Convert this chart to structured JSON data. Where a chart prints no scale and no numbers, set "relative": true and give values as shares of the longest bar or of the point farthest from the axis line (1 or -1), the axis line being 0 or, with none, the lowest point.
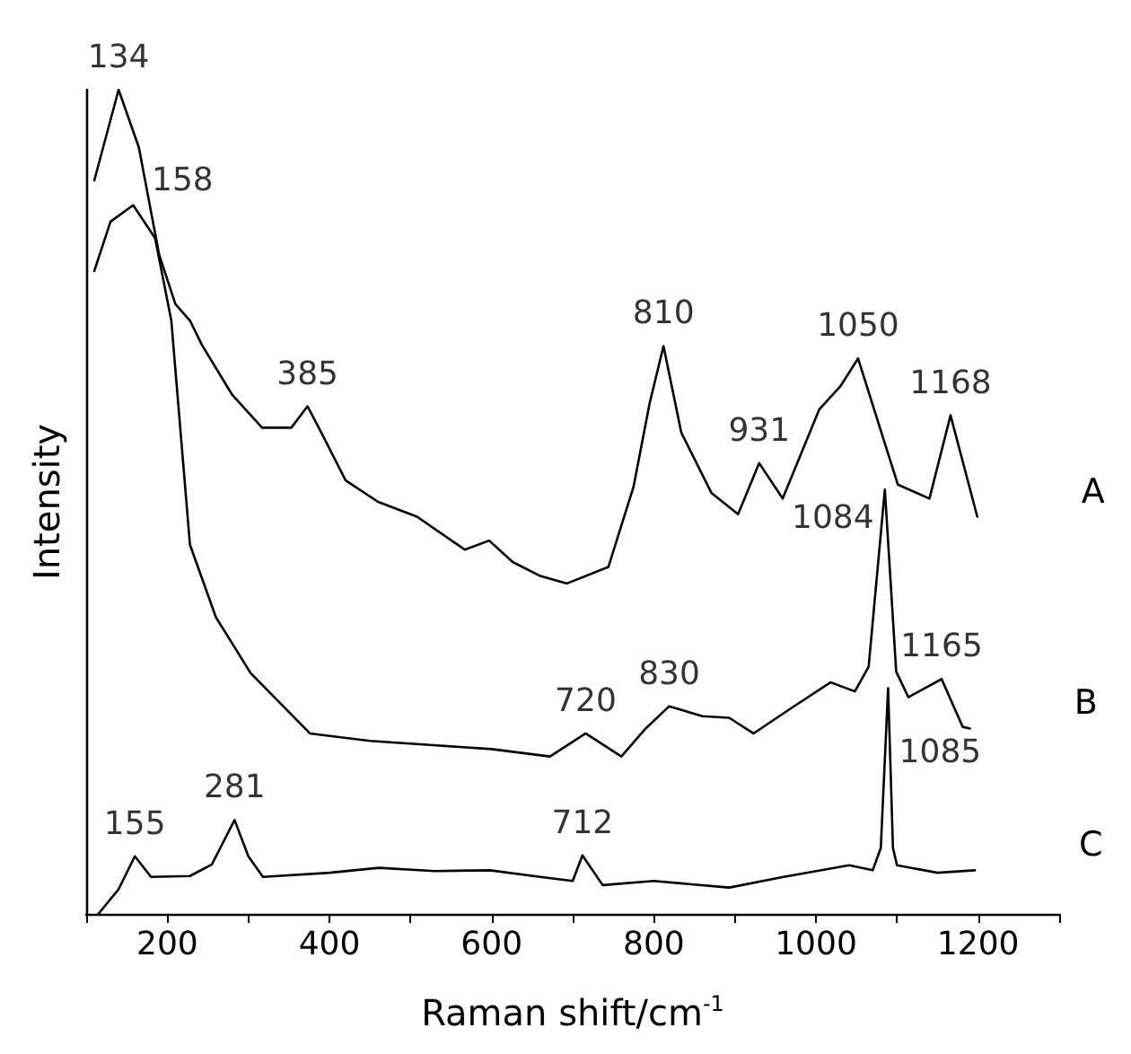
{
  "chart_data": {
    "type": "line",
    "relative": true,
    "xlabel": "Raman shift/cm$^{-1}$",
    "ylabel": "Intensity",
    "xlim": [
      100,
      1300
    ],
    "xticks": [
      {
        "value": 100,
        "label": null
      },
      200,
      {
        "value": 300,
        "label": null
      },
      400,
      {
        "value": 500,
        "label": null
      },
      600,
      {
        "value": 700,
        "label": null
      },
      800,
      {
        "value": 900,
        "label": null
      },
      1000,
      {
        "value": 1100,
        "label": null
      },
      1200,
      {
        "value": 1300,
        "label": null
      }
    ],
    "x": [
      110,
      140,
      165,
      190,
      210,
      228,
      243,
      280,
      317,
      353,
      373,
      390,
      420,
      460,
      508,
      567,
      597,
      626,
      660,
      693,
      744,
      775,
      795,
      812,
      834,
      871,
      904,
      930,
      959,
      1004,
      1030,
      1052,
      1101,
      1140,
      1166,
      1199
    ],
    "series": [
      {
        "name": "A",
        "color": "#000000",
        "values": [
          0.89,
          1.0,
          0.93,
          0.8,
          0.74,
          0.72,
          0.69,
          0.63,
          0.59,
          0.59,
          0.616,
          0.584,
          0.526,
          0.5,
          0.482,
          0.442,
          0.453,
          0.427,
          0.41,
          0.401,
          0.421,
          0.518,
          0.62,
          0.689,
          0.584,
          0.511,
          0.485,
          0.547,
          0.504,
          0.612,
          0.64,
          0.674,
          0.521,
          0.504,
          0.605,
          0.482
        ]
      },
      {
        "name": "B",
        "color": "#000000",
        "x": [
          110,
          130,
          158,
          185,
          205,
          228,
          260,
          303,
          376,
          450,
          524,
          600,
          672,
          716,
          760,
          790,
          819,
          860,
          893,
          923,
          970,
          1018,
          1048,
          1065,
          1085,
          1099,
          1114,
          1155,
          1181,
          1190
        ],
        "values": [
          0.78,
          0.84,
          0.86,
          0.82,
          0.72,
          0.448,
          0.36,
          0.292,
          0.219,
          0.21,
          0.205,
          0.2,
          0.191,
          0.219,
          0.191,
          0.225,
          0.252,
          0.24,
          0.238,
          0.219,
          0.25,
          0.281,
          0.27,
          0.3,
          0.515,
          0.294,
          0.263,
          0.285,
          0.227,
          0.225
        ]
      },
      {
        "name": "C",
        "color": "#000000",
        "x": [
          115,
          140,
          160,
          180,
          228,
          255,
          283,
          300,
          318,
          400,
          461,
          530,
          598,
          660,
          700,
          712,
          737,
          800,
          893,
          960,
          1041,
          1070,
          1080,
          1089,
          1095,
          1100,
          1150,
          1196
        ],
        "values": [
          0.0,
          0.03,
          0.07,
          0.045,
          0.046,
          0.06,
          0.114,
          0.07,
          0.045,
          0.05,
          0.056,
          0.052,
          0.053,
          0.045,
          0.04,
          0.071,
          0.035,
          0.04,
          0.032,
          0.045,
          0.059,
          0.053,
          0.08,
          0.274,
          0.08,
          0.059,
          0.05,
          0.053
        ]
      }
    ],
    "annotations": [
      {
        "text": "134",
        "x": 140,
        "y": 1.0
      },
      {
        "text": "385",
        "x": 373,
        "y": 0.616
      },
      {
        "text": "810",
        "x": 812,
        "y": 0.689
      },
      {
        "text": "931",
        "x": 930,
        "y": 0.547
      },
      {
        "text": "1050",
        "x": 1052,
        "y": 0.674
      },
      {
        "text": "1168",
        "x": 1166,
        "y": 0.605
      },
      {
        "text": "158",
        "x": 158,
        "y": 0.86
      },
      {
        "text": "1084",
        "x": 1085,
        "y": 0.515
      },
      {
        "text": "720",
        "x": 716,
        "y": 0.219
      },
      {
        "text": "830",
        "x": 819,
        "y": 0.252
      },
      {
        "text": "1165",
        "x": 1155,
        "y": 0.285
      },
      {
        "text": "155",
        "x": 160,
        "y": 0.07
      },
      {
        "text": "281",
        "x": 283,
        "y": 0.114
      },
      {
        "text": "712",
        "x": 712,
        "y": 0.071
      },
      {
        "text": "1085",
        "x": 1089,
        "y": 0.274
      }
    ],
    "grid": false,
    "legend": false,
    "marker": "none",
    "line_style": "solid"
  }
}
